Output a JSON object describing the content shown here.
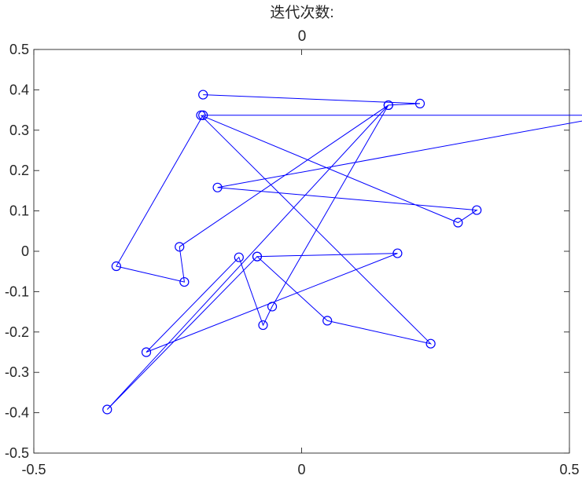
{
  "title_line1": "迭代次数:",
  "title_line2": "0",
  "chart_data": {
    "type": "line",
    "marker": "circle",
    "line_color": "#0000ff",
    "xlim": [
      -0.5,
      0.5
    ],
    "ylim": [
      -0.5,
      0.5
    ],
    "xticks": [
      -0.5,
      0,
      0.5
    ],
    "xtick_labels": [
      "-0.5",
      "0",
      "0.5"
    ],
    "yticks": [
      -0.5,
      -0.4,
      -0.3,
      -0.2,
      -0.1,
      0,
      0.1,
      0.2,
      0.3,
      0.4,
      0.5
    ],
    "ytick_labels": [
      "-0.5",
      "-0.4",
      "-0.3",
      "-0.2",
      "-0.1",
      "0",
      "0.1",
      "0.2",
      "0.3",
      "0.4",
      "0.5"
    ],
    "grid": false,
    "series": [
      {
        "x": [
          -0.184,
          0.221,
          0.162,
          -0.228,
          -0.219,
          -0.346,
          -0.184,
          0.588,
          0.582,
          -0.157,
          0.327,
          0.292,
          -0.188,
          0.241,
          0.048,
          -0.083,
          0.179,
          -0.29,
          -0.117,
          -0.072,
          -0.055,
          0.162,
          -0.363,
          -0.083
        ],
        "y": [
          0.388,
          0.366,
          0.362,
          0.011,
          -0.076,
          -0.037,
          0.337,
          0.337,
          0.337,
          0.158,
          0.102,
          0.071,
          0.337,
          -0.229,
          -0.172,
          -0.013,
          -0.005,
          -0.25,
          -0.015,
          -0.183,
          -0.137,
          0.362,
          -0.392,
          -0.013
        ]
      }
    ]
  }
}
